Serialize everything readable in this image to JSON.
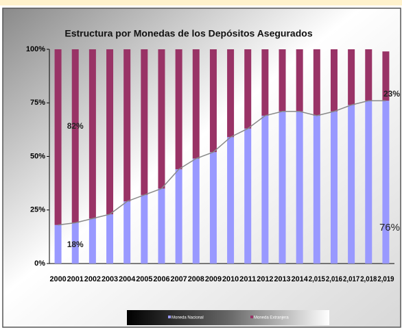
{
  "chart_data": {
    "type": "stacked_bar",
    "title": "Estructura  por Monedas de los Depósitos Asegurados",
    "categories": [
      "2000",
      "2001",
      "2002",
      "2003",
      "2004",
      "2005",
      "2006",
      "2007",
      "2008",
      "2009",
      "2010",
      "2011",
      "2012",
      "2013",
      "2014",
      "2,015",
      "2,016",
      "2,017",
      "2,018",
      "2,019"
    ],
    "series": [
      {
        "name": "Moneda Nacional",
        "color": "#9999ff",
        "values": [
          18,
          19,
          21,
          23,
          29,
          32,
          35,
          44,
          49,
          52,
          59,
          63,
          69,
          71,
          71,
          69,
          71,
          74,
          76,
          76
        ],
        "value_labels": [
          "18%",
          null,
          null,
          null,
          null,
          null,
          null,
          null,
          null,
          null,
          null,
          null,
          null,
          null,
          null,
          null,
          null,
          null,
          null,
          "76%"
        ]
      },
      {
        "name": "Moneda Extranjera",
        "color": "#993366",
        "values": [
          82,
          81,
          79,
          77,
          71,
          68,
          65,
          56,
          51,
          48,
          41,
          37,
          31,
          29,
          29,
          31,
          29,
          26,
          24,
          23
        ],
        "value_labels": [
          "82%",
          null,
          null,
          null,
          null,
          null,
          null,
          null,
          null,
          null,
          null,
          null,
          null,
          null,
          null,
          null,
          null,
          null,
          null,
          "23%"
        ]
      }
    ],
    "ylim": [
      0,
      100
    ],
    "yticks": [
      {
        "value": 0,
        "label": "0%"
      },
      {
        "value": 25,
        "label": "25%"
      },
      {
        "value": 50,
        "label": "50%"
      },
      {
        "value": 75,
        "label": "75%"
      },
      {
        "value": 100,
        "label": "100%"
      }
    ]
  }
}
